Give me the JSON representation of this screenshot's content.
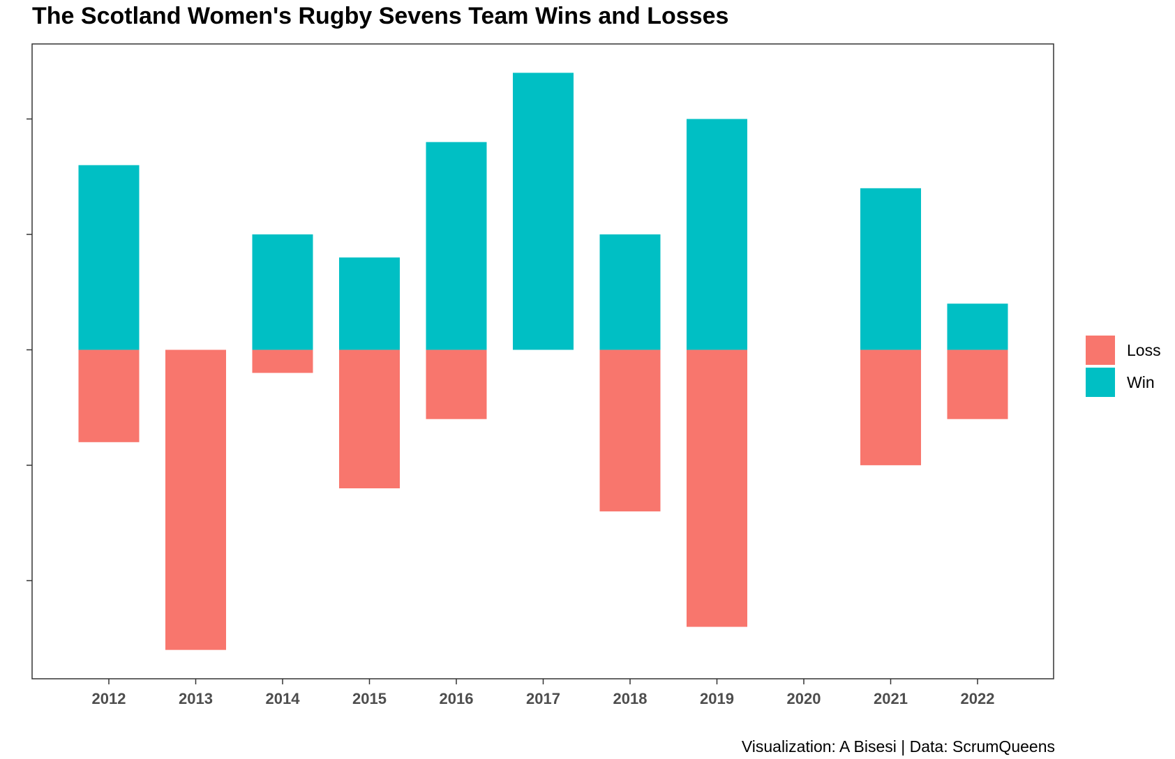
{
  "title": "The Scotland Women's Rugby Sevens Team Wins and Losses",
  "caption": "Visualization: A Bisesi | Data: ScrumQueens",
  "colors": {
    "Win": "#00BFC4",
    "Loss": "#F8766D",
    "panel_border": "#333333",
    "tick_text": "#4d4d4d"
  },
  "chart_data": {
    "type": "bar",
    "stacked": "diverging",
    "title": "The Scotland Women's Rugby Sevens Team Wins and Losses",
    "xlabel": "",
    "ylabel": "",
    "y_tick_labels_shown": false,
    "grid": false,
    "legend_position": "right",
    "categories": [
      "2012",
      "2013",
      "2014",
      "2015",
      "2016",
      "2017",
      "2018",
      "2019",
      "2020",
      "2021",
      "2022"
    ],
    "series": [
      {
        "name": "Loss",
        "values": [
          -8,
          -26,
          -2,
          -12,
          -6,
          0,
          -14,
          -24,
          0,
          -10,
          -6
        ]
      },
      {
        "name": "Win",
        "values": [
          16,
          0,
          10,
          8,
          18,
          24,
          10,
          20,
          0,
          14,
          4
        ]
      }
    ],
    "y_ticks": [
      -20,
      -10,
      0,
      10,
      20
    ],
    "ylim": [
      -28.5,
      26.5
    ]
  }
}
